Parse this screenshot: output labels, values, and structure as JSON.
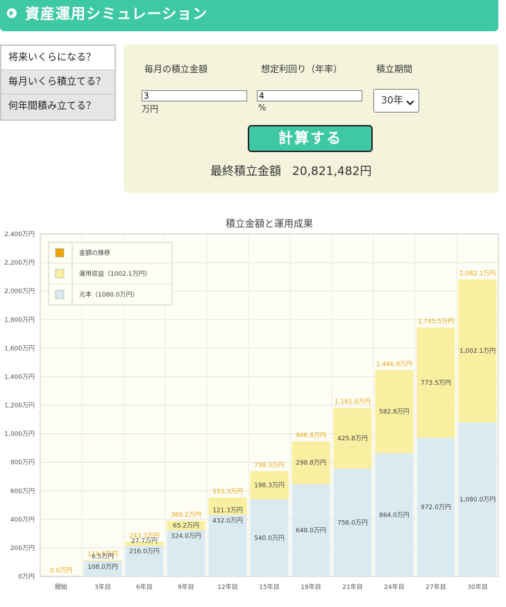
{
  "header": {
    "title": "資産運用シミュレーション"
  },
  "tabs": [
    {
      "label": "将来いくらになる？"
    },
    {
      "label": "毎月いくら積立てる？"
    },
    {
      "label": "何年間積み立てる？"
    }
  ],
  "form": {
    "monthly_label": "毎月の積立金額",
    "rate_label": "想定利回り（年率）",
    "period_label": "積立期間",
    "monthly_value": "3",
    "monthly_unit": "万円",
    "rate_value": "4",
    "rate_unit": "%",
    "period_value": "30年",
    "calc_button": "計算する",
    "result_label": "最終積立金額",
    "result_value": "20,821,482円"
  },
  "chart_data": {
    "type": "bar",
    "title": "積立金額と運用成果",
    "categories": [
      "開始",
      "3年目",
      "6年目",
      "9年目",
      "12年目",
      "15年目",
      "18年目",
      "21年目",
      "24年目",
      "27年目",
      "30年目"
    ],
    "series": [
      {
        "name": "元本（1080.0万円）",
        "color": "#dbeaf1",
        "values": [
          0,
          108.0,
          216.0,
          324.0,
          432.0,
          540.0,
          648.0,
          756.0,
          864.0,
          972.0,
          1080.0
        ]
      },
      {
        "name": "運用収益（1002.1万円）",
        "color": "#f8efa0",
        "values": [
          0,
          6.5,
          27.7,
          65.2,
          121.3,
          198.3,
          298.8,
          425.8,
          582.8,
          773.5,
          1002.1
        ]
      }
    ],
    "totals": [
      0.0,
      114.5,
      243.7,
      389.2,
      553.3,
      738.3,
      946.8,
      1181.8,
      1446.8,
      1745.5,
      2082.1
    ],
    "legend": [
      {
        "name": "金額の推移",
        "color": "#f0a30a"
      },
      {
        "name": "運用収益（1002.1万円）",
        "color": "#f8efa0"
      },
      {
        "name": "元本（1080.0万円）",
        "color": "#dbeaf1"
      }
    ],
    "y_ticks": [
      "0万円",
      "200万円",
      "400万円",
      "600万円",
      "800万円",
      "1,000万円",
      "1,200万円",
      "1,400万円",
      "1,600万円",
      "1,800万円",
      "2,000万円",
      "2,200万円",
      "2,400万円"
    ],
    "ylim": [
      0,
      2400
    ],
    "unit": "万円",
    "legend_position": "top-left",
    "grid": true
  }
}
